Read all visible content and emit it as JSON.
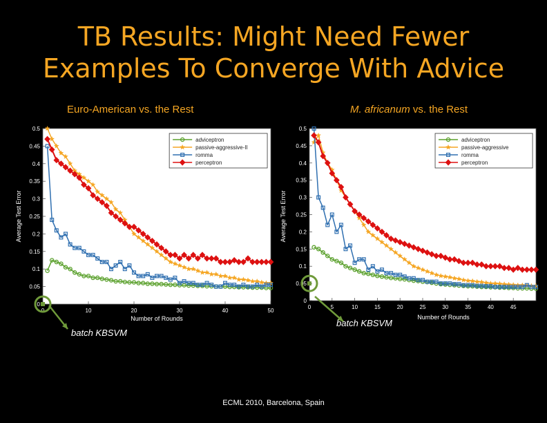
{
  "slide": {
    "title_line1": "TB Results: Might Need Fewer",
    "title_line2": "Examples To Converge With Advice",
    "footer": "ECML 2010, Barcelona, Spain",
    "callout_left": "batch KBSVM",
    "callout_right": "batch KBSVM"
  },
  "colors": {
    "adviceptron": "#5aa02c",
    "passive_aggressive": "#f5a623",
    "romma": "#2f6fb0",
    "perceptron": "#dd1111",
    "title": "#f5a623",
    "callout": "#6f9a3a"
  },
  "chart_data": [
    {
      "type": "line",
      "title_prefix": "Euro-American vs. the Rest",
      "title_italic": "",
      "title_suffix": "",
      "xlabel": "Number of Rounds",
      "ylabel": "Average Test Error",
      "xlim": [
        0,
        50
      ],
      "ylim": [
        0,
        0.5
      ],
      "xticks": [
        0,
        10,
        20,
        30,
        40,
        50
      ],
      "yticks": [
        0,
        0.05,
        0.1,
        0.15,
        0.2,
        0.25,
        0.3,
        0.35,
        0.4,
        0.45,
        0.5
      ],
      "legend_position": "top-right",
      "batch_kbsvm_point": {
        "x": 0,
        "y": 0
      },
      "x": [
        1,
        2,
        3,
        4,
        5,
        6,
        7,
        8,
        9,
        10,
        11,
        12,
        13,
        14,
        15,
        16,
        17,
        18,
        19,
        20,
        21,
        22,
        23,
        24,
        25,
        26,
        27,
        28,
        29,
        30,
        31,
        32,
        33,
        34,
        35,
        36,
        37,
        38,
        39,
        40,
        41,
        42,
        43,
        44,
        45,
        46,
        47,
        48,
        49,
        50
      ],
      "series": [
        {
          "name": "adviceptron",
          "values": [
            0.095,
            0.125,
            0.12,
            0.115,
            0.105,
            0.1,
            0.09,
            0.085,
            0.08,
            0.08,
            0.075,
            0.075,
            0.072,
            0.07,
            0.068,
            0.065,
            0.065,
            0.063,
            0.062,
            0.062,
            0.06,
            0.06,
            0.058,
            0.058,
            0.057,
            0.057,
            0.056,
            0.055,
            0.055,
            0.054,
            0.054,
            0.053,
            0.053,
            0.052,
            0.052,
            0.051,
            0.051,
            0.05,
            0.05,
            0.05,
            0.049,
            0.049,
            0.048,
            0.048,
            0.048,
            0.047,
            0.047,
            0.047,
            0.046,
            0.046
          ]
        },
        {
          "name": "passive-aggressive-II",
          "values": [
            0.5,
            0.47,
            0.45,
            0.43,
            0.42,
            0.4,
            0.38,
            0.37,
            0.36,
            0.35,
            0.34,
            0.32,
            0.31,
            0.3,
            0.29,
            0.27,
            0.26,
            0.24,
            0.22,
            0.2,
            0.19,
            0.18,
            0.17,
            0.16,
            0.15,
            0.14,
            0.13,
            0.12,
            0.115,
            0.11,
            0.105,
            0.1,
            0.1,
            0.095,
            0.09,
            0.09,
            0.085,
            0.085,
            0.08,
            0.08,
            0.075,
            0.075,
            0.07,
            0.07,
            0.068,
            0.065,
            0.065,
            0.062,
            0.06,
            0.06
          ]
        },
        {
          "name": "romma",
          "values": [
            0.45,
            0.24,
            0.21,
            0.19,
            0.2,
            0.17,
            0.16,
            0.16,
            0.15,
            0.14,
            0.14,
            0.13,
            0.12,
            0.12,
            0.1,
            0.11,
            0.12,
            0.1,
            0.11,
            0.09,
            0.08,
            0.08,
            0.085,
            0.075,
            0.08,
            0.08,
            0.075,
            0.07,
            0.075,
            0.06,
            0.065,
            0.06,
            0.06,
            0.055,
            0.055,
            0.06,
            0.055,
            0.05,
            0.05,
            0.06,
            0.055,
            0.055,
            0.05,
            0.055,
            0.05,
            0.05,
            0.055,
            0.05,
            0.055,
            0.055
          ]
        },
        {
          "name": "perceptron",
          "values": [
            0.47,
            0.44,
            0.41,
            0.4,
            0.39,
            0.38,
            0.37,
            0.36,
            0.34,
            0.33,
            0.31,
            0.3,
            0.29,
            0.28,
            0.26,
            0.25,
            0.24,
            0.23,
            0.22,
            0.22,
            0.21,
            0.2,
            0.19,
            0.18,
            0.17,
            0.16,
            0.15,
            0.14,
            0.14,
            0.13,
            0.14,
            0.13,
            0.14,
            0.13,
            0.14,
            0.13,
            0.13,
            0.13,
            0.12,
            0.12,
            0.12,
            0.125,
            0.12,
            0.12,
            0.13,
            0.12,
            0.12,
            0.12,
            0.12,
            0.12
          ]
        }
      ]
    },
    {
      "type": "line",
      "title_prefix": "",
      "title_italic": "M. africanum",
      "title_suffix": " vs. the Rest",
      "xlabel": "Number of Rounds",
      "ylabel": "Average Test Error",
      "xlim": [
        0,
        50
      ],
      "ylim": [
        0,
        0.5
      ],
      "xticks": [
        0,
        5,
        10,
        15,
        20,
        25,
        30,
        35,
        40,
        45
      ],
      "yticks": [
        0,
        0.05,
        0.1,
        0.15,
        0.2,
        0.25,
        0.3,
        0.35,
        0.4,
        0.45,
        0.5
      ],
      "legend_position": "top-right",
      "batch_kbsvm_point": {
        "x": 0,
        "y": 0.05
      },
      "x": [
        1,
        2,
        3,
        4,
        5,
        6,
        7,
        8,
        9,
        10,
        11,
        12,
        13,
        14,
        15,
        16,
        17,
        18,
        19,
        20,
        21,
        22,
        23,
        24,
        25,
        26,
        27,
        28,
        29,
        30,
        31,
        32,
        33,
        34,
        35,
        36,
        37,
        38,
        39,
        40,
        41,
        42,
        43,
        44,
        45,
        46,
        47,
        48,
        49,
        50
      ],
      "series": [
        {
          "name": "adviceptron",
          "values": [
            0.155,
            0.15,
            0.14,
            0.13,
            0.12,
            0.115,
            0.11,
            0.1,
            0.095,
            0.09,
            0.085,
            0.08,
            0.078,
            0.075,
            0.072,
            0.07,
            0.068,
            0.066,
            0.065,
            0.063,
            0.062,
            0.06,
            0.058,
            0.057,
            0.055,
            0.054,
            0.052,
            0.05,
            0.048,
            0.047,
            0.046,
            0.045,
            0.044,
            0.043,
            0.042,
            0.042,
            0.041,
            0.04,
            0.04,
            0.039,
            0.039,
            0.038,
            0.038,
            0.037,
            0.037,
            0.036,
            0.036,
            0.036,
            0.035,
            0.035
          ]
        },
        {
          "name": "passive-aggressive",
          "values": [
            0.46,
            0.48,
            0.43,
            0.4,
            0.38,
            0.35,
            0.32,
            0.3,
            0.28,
            0.26,
            0.24,
            0.22,
            0.2,
            0.19,
            0.18,
            0.17,
            0.16,
            0.15,
            0.14,
            0.13,
            0.12,
            0.11,
            0.1,
            0.095,
            0.09,
            0.085,
            0.08,
            0.075,
            0.072,
            0.07,
            0.068,
            0.065,
            0.063,
            0.06,
            0.058,
            0.057,
            0.055,
            0.054,
            0.052,
            0.05,
            0.05,
            0.049,
            0.048,
            0.047,
            0.046,
            0.045,
            0.045,
            0.044,
            0.043,
            0.043
          ]
        },
        {
          "name": "romma",
          "values": [
            0.5,
            0.3,
            0.27,
            0.22,
            0.25,
            0.2,
            0.22,
            0.15,
            0.16,
            0.11,
            0.12,
            0.12,
            0.09,
            0.1,
            0.085,
            0.09,
            0.08,
            0.08,
            0.075,
            0.075,
            0.07,
            0.065,
            0.065,
            0.06,
            0.06,
            0.055,
            0.055,
            0.055,
            0.05,
            0.05,
            0.05,
            0.048,
            0.048,
            0.045,
            0.045,
            0.045,
            0.043,
            0.043,
            0.042,
            0.042,
            0.04,
            0.04,
            0.04,
            0.04,
            0.04,
            0.04,
            0.04,
            0.045,
            0.04,
            0.04
          ]
        },
        {
          "name": "perceptron",
          "values": [
            0.48,
            0.46,
            0.42,
            0.4,
            0.37,
            0.35,
            0.33,
            0.3,
            0.28,
            0.26,
            0.25,
            0.24,
            0.23,
            0.22,
            0.21,
            0.2,
            0.19,
            0.18,
            0.175,
            0.17,
            0.165,
            0.16,
            0.155,
            0.15,
            0.145,
            0.14,
            0.135,
            0.13,
            0.13,
            0.125,
            0.12,
            0.12,
            0.115,
            0.11,
            0.11,
            0.11,
            0.105,
            0.105,
            0.1,
            0.1,
            0.1,
            0.1,
            0.095,
            0.095,
            0.09,
            0.095,
            0.09,
            0.09,
            0.09,
            0.09
          ]
        }
      ]
    }
  ]
}
